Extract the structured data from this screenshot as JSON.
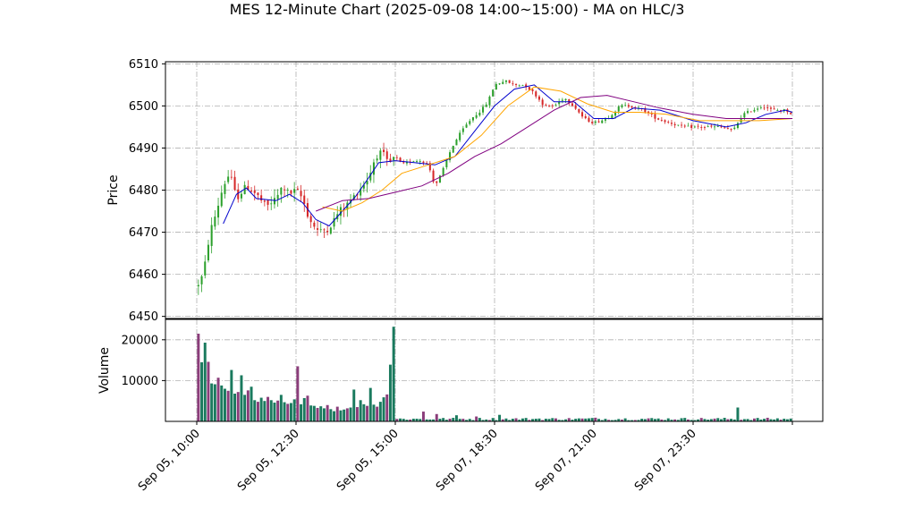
{
  "chart_data": {
    "type": "candlestick",
    "title": "MES 12-Minute Chart (2025-09-08 14:00~15:00) - MA on HLC/3",
    "price_panel": {
      "ylabel": "Price",
      "ylim": [
        6449.5,
        6510.5
      ],
      "yticks": [
        6450,
        6460,
        6470,
        6480,
        6490,
        6500,
        6510
      ],
      "grid": true,
      "bar_interval_minutes": 12,
      "bar_count": 180,
      "up_color": "#2ca02c",
      "down_color": "#d62728",
      "close_waypoints": [
        [
          0,
          6457
        ],
        [
          2,
          6460
        ],
        [
          4,
          6470
        ],
        [
          6,
          6475
        ],
        [
          8,
          6481
        ],
        [
          10,
          6484
        ],
        [
          12,
          6478
        ],
        [
          15,
          6481
        ],
        [
          18,
          6479
        ],
        [
          21,
          6476
        ],
        [
          24,
          6478
        ],
        [
          26,
          6481
        ],
        [
          28,
          6479
        ],
        [
          30,
          6480
        ],
        [
          32,
          6478
        ],
        [
          34,
          6473
        ],
        [
          37,
          6470
        ],
        [
          40,
          6471
        ],
        [
          43,
          6475
        ],
        [
          46,
          6477
        ],
        [
          49,
          6480
        ],
        [
          52,
          6483
        ],
        [
          54,
          6488
        ],
        [
          56,
          6489
        ],
        [
          58,
          6486
        ],
        [
          60,
          6488
        ],
        [
          62,
          6486
        ],
        [
          65,
          6487
        ],
        [
          68,
          6487
        ],
        [
          70,
          6486
        ],
        [
          72,
          6481
        ],
        [
          74,
          6484
        ],
        [
          77,
          6490
        ],
        [
          80,
          6494
        ],
        [
          83,
          6497
        ],
        [
          86,
          6499
        ],
        [
          88,
          6501
        ],
        [
          90,
          6505
        ],
        [
          93,
          6506
        ],
        [
          96,
          6505
        ],
        [
          99,
          6505
        ],
        [
          102,
          6503
        ],
        [
          105,
          6500
        ],
        [
          108,
          6500
        ],
        [
          111,
          6502
        ],
        [
          114,
          6500
        ],
        [
          117,
          6497
        ],
        [
          120,
          6496
        ],
        [
          124,
          6497
        ],
        [
          128,
          6500
        ],
        [
          131,
          6500
        ],
        [
          135,
          6499
        ],
        [
          139,
          6497
        ],
        [
          143,
          6496
        ],
        [
          147,
          6495
        ],
        [
          151,
          6495
        ],
        [
          155,
          6495
        ],
        [
          159,
          6495
        ],
        [
          162,
          6494
        ],
        [
          165,
          6498
        ],
        [
          168,
          6499
        ],
        [
          171,
          6500
        ],
        [
          174,
          6499
        ],
        [
          178,
          6499
        ],
        [
          180,
          6498
        ]
      ],
      "moving_averages": [
        {
          "color": "#0000cc",
          "points": [
            [
              8,
              6472
            ],
            [
              12,
              6479
            ],
            [
              15,
              6480.5
            ],
            [
              18,
              6478
            ],
            [
              24,
              6477.5
            ],
            [
              28,
              6479
            ],
            [
              32,
              6477
            ],
            [
              36,
              6473
            ],
            [
              40,
              6471.5
            ],
            [
              44,
              6475
            ],
            [
              48,
              6478.5
            ],
            [
              52,
              6483
            ],
            [
              55,
              6486.5
            ],
            [
              60,
              6487
            ],
            [
              66,
              6486.5
            ],
            [
              72,
              6486
            ],
            [
              78,
              6488
            ],
            [
              84,
              6494
            ],
            [
              90,
              6500
            ],
            [
              96,
              6504
            ],
            [
              102,
              6505
            ],
            [
              108,
              6501
            ],
            [
              114,
              6501
            ],
            [
              120,
              6497
            ],
            [
              126,
              6497
            ],
            [
              132,
              6499.5
            ],
            [
              140,
              6499
            ],
            [
              150,
              6496.5
            ],
            [
              160,
              6495
            ],
            [
              166,
              6496
            ],
            [
              172,
              6498
            ],
            [
              178,
              6499
            ],
            [
              180,
              6498.5
            ]
          ]
        },
        {
          "color": "#ffa500",
          "points": [
            [
              38,
              6476
            ],
            [
              44,
              6475
            ],
            [
              50,
              6477
            ],
            [
              56,
              6480
            ],
            [
              62,
              6484
            ],
            [
              70,
              6486
            ],
            [
              78,
              6488
            ],
            [
              86,
              6493
            ],
            [
              94,
              6500
            ],
            [
              102,
              6504.5
            ],
            [
              110,
              6503.5
            ],
            [
              118,
              6500.5
            ],
            [
              126,
              6498.5
            ],
            [
              134,
              6498.5
            ],
            [
              142,
              6498
            ],
            [
              152,
              6496.5
            ],
            [
              160,
              6496.5
            ],
            [
              170,
              6496.5
            ],
            [
              180,
              6497
            ]
          ]
        },
        {
          "color": "#800080",
          "points": [
            [
              36,
              6475
            ],
            [
              44,
              6477.5
            ],
            [
              52,
              6478
            ],
            [
              60,
              6479.5
            ],
            [
              68,
              6481
            ],
            [
              76,
              6484
            ],
            [
              84,
              6488
            ],
            [
              92,
              6491
            ],
            [
              100,
              6495
            ],
            [
              108,
              6499
            ],
            [
              116,
              6502
            ],
            [
              124,
              6502.5
            ],
            [
              132,
              6501
            ],
            [
              140,
              6499.5
            ],
            [
              150,
              6498
            ],
            [
              160,
              6497
            ],
            [
              170,
              6497
            ],
            [
              180,
              6497
            ]
          ]
        }
      ]
    },
    "volume_panel": {
      "ylabel": "Volume",
      "yticks": [
        10000,
        20000
      ],
      "ymax": 25000,
      "grid": true,
      "bar_colors": [
        "#1a7a5e",
        "#8a3d7a"
      ],
      "session_1": {
        "bars": 60,
        "volumes": [
          21500,
          14500,
          19300,
          14600,
          9300,
          9100,
          10700,
          8800,
          8000,
          7500,
          12600,
          6800,
          7200,
          11300,
          6500,
          7600,
          8500,
          5200,
          4800,
          5800,
          5000,
          6000,
          5200,
          4600,
          5100,
          6500,
          4700,
          4300,
          4500,
          5400,
          13500,
          4200,
          5700,
          6300,
          3900,
          3800,
          3300,
          3700,
          3200,
          4000,
          3000,
          2500,
          3600,
          2700,
          2900,
          3200,
          3400,
          7800,
          3500,
          5200,
          4200,
          3800,
          8200,
          4100,
          3600,
          4800,
          5900,
          6600,
          13900,
          23200
        ]
      },
      "session_2": {
        "bars": 120,
        "typical_volume": 600,
        "spikes": [
          [
            68,
            2400
          ],
          [
            72,
            1800
          ],
          [
            78,
            1500
          ],
          [
            84,
            1200
          ],
          [
            91,
            1600
          ],
          [
            103,
            700
          ],
          [
            120,
            900
          ],
          [
            163,
            3400
          ]
        ]
      }
    },
    "x_axis": {
      "tick_labels": [
        "Sep 05, 10:00",
        "Sep 05, 12:30",
        "Sep 05, 15:00",
        "Sep 07, 18:30",
        "Sep 07, 21:00",
        "Sep 07, 23:30",
        ""
      ],
      "tick_bars": [
        0,
        30,
        60,
        90,
        120,
        150,
        180
      ]
    }
  }
}
